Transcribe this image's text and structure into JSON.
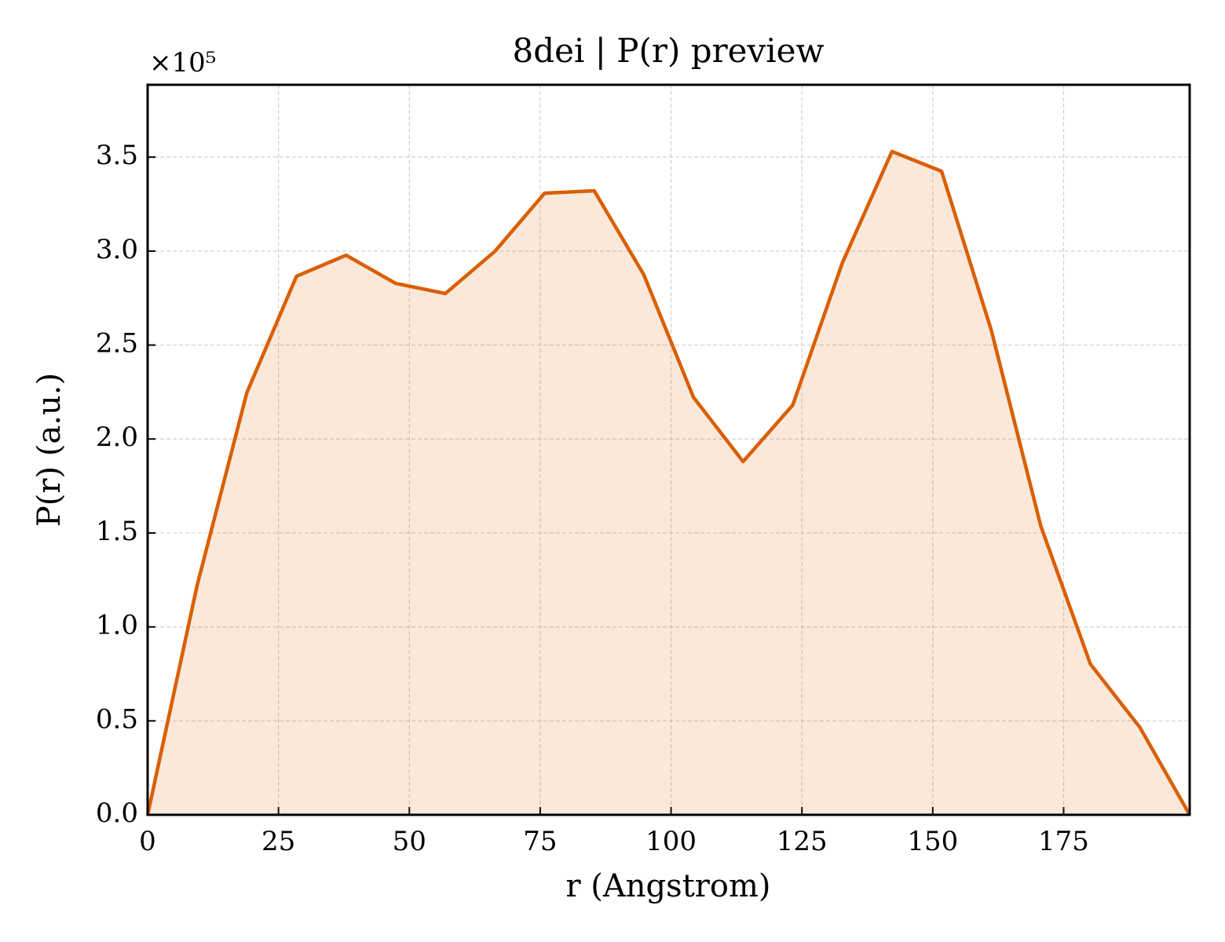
{
  "chart_data": {
    "type": "line",
    "title": "8dei | P(r) preview",
    "x_label": "r (Angstrom)",
    "y_label": "P(r) (a.u.)",
    "y_offset_text": "×10⁵",
    "x": [
      0,
      9.48,
      18.96,
      28.44,
      37.92,
      47.4,
      56.88,
      66.36,
      75.84,
      85.32,
      94.8,
      104.28,
      113.76,
      123.24,
      132.72,
      142.2,
      151.68,
      161.16,
      170.64,
      180.12,
      189.6,
      199.08
    ],
    "values": [
      0,
      122400,
      224700,
      286600,
      297800,
      282800,
      277400,
      299900,
      330800,
      332100,
      287400,
      222200,
      188000,
      218000,
      293700,
      353000,
      342500,
      258100,
      153700,
      80200,
      46400,
      0
    ],
    "color": "#d95f02",
    "fill": true,
    "xlim": [
      0,
      199.08
    ],
    "ylim": [
      0,
      388500
    ],
    "xticks": [
      0,
      25,
      50,
      75,
      100,
      125,
      150,
      175
    ],
    "yticks": [
      {
        "value": 0,
        "label": "0.0"
      },
      {
        "value": 50000,
        "label": "0.5"
      },
      {
        "value": 100000,
        "label": "1.0"
      },
      {
        "value": 150000,
        "label": "1.5"
      },
      {
        "value": 200000,
        "label": "2.0"
      },
      {
        "value": 250000,
        "label": "2.5"
      },
      {
        "value": 300000,
        "label": "3.0"
      },
      {
        "value": 350000,
        "label": "3.5"
      }
    ],
    "grid": true
  }
}
